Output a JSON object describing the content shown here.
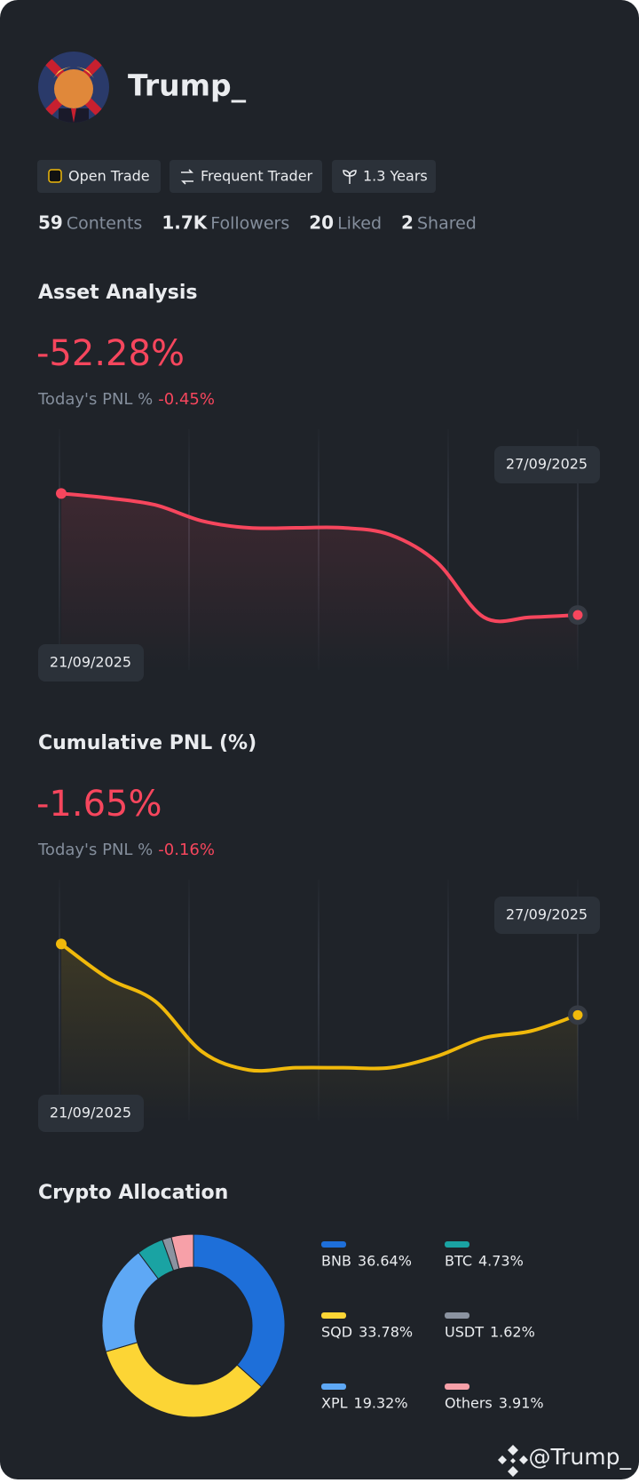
{
  "profile": {
    "name": "Trump_",
    "tags": [
      "Open Trade",
      "Frequent Trader",
      "1.3 Years"
    ],
    "stats": [
      {
        "number": "59",
        "label": "Contents"
      },
      {
        "number": "1.7K",
        "label": "Followers"
      },
      {
        "number": "20",
        "label": "Liked"
      },
      {
        "number": "2",
        "label": "Shared"
      }
    ],
    "watermark": "@Trump_"
  },
  "chart_data": [
    {
      "type": "line",
      "title": "Asset Analysis",
      "headline": "-52.28%",
      "pnl_label": "Today's PNL %",
      "pnl_value": "-0.45%",
      "start_label": "21/09/2025",
      "end_label": "27/09/2025",
      "color": "#f6465d",
      "ylim": [
        0,
        100
      ],
      "values": [
        77,
        75,
        72,
        65,
        62,
        62,
        62,
        59,
        47,
        23,
        23,
        24
      ]
    },
    {
      "type": "line",
      "title": "Cumulative PNL (%)",
      "headline": "-1.65%",
      "pnl_label": "Today's PNL %",
      "pnl_value": "-0.16%",
      "start_label": "21/09/2025",
      "end_label": "27/09/2025",
      "color": "#f0b90b",
      "ylim": [
        0,
        100
      ],
      "values": [
        77,
        62,
        52,
        30,
        22,
        23,
        23,
        23,
        28,
        36,
        39,
        46
      ]
    },
    {
      "type": "donut",
      "title": "Crypto Allocation",
      "categories": [
        "BNB",
        "SQD",
        "XPL",
        "BTC",
        "USDT",
        "Others"
      ],
      "values": [
        36.64,
        33.78,
        19.32,
        4.73,
        1.62,
        3.91
      ],
      "value_labels": [
        "36.64%",
        "33.78%",
        "19.32%",
        "4.73%",
        "1.62%",
        "3.91%"
      ],
      "colors": [
        "#1e6fd9",
        "#fcd535",
        "#5ea8f5",
        "#1aa3a3",
        "#8b93a0",
        "#f7a0a8"
      ]
    }
  ]
}
